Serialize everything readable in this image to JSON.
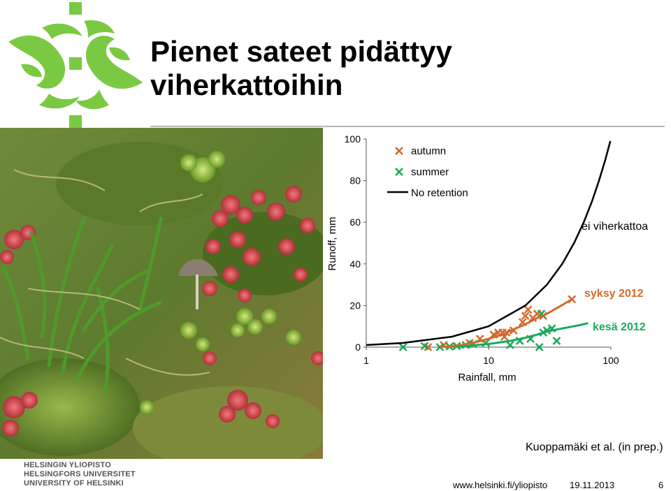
{
  "slide": {
    "title_line1": "Pienet sateet pidättyy",
    "title_line2": "viherkattoihin",
    "citation": "Kuoppamäki et al. (in prep.)"
  },
  "footer": {
    "university_fi": "HELSINGIN YLIOPISTO",
    "university_sv": "HELSINGFORS UNIVERSITET",
    "university_en": "UNIVERSITY OF HELSINKI",
    "url": "www.helsinki.fi/yliopisto",
    "date": "19.11.2013",
    "page": "6"
  },
  "colors": {
    "logo_green": "#7ac943",
    "autumn": "#d4692a",
    "summer": "#1aaa5a",
    "no_retention": "#000000"
  },
  "chart_data": {
    "type": "scatter",
    "xlabel": "Rainfall, mm",
    "ylabel": "Runoff, mm",
    "xscale": "log",
    "xlim": [
      1,
      100
    ],
    "ylim": [
      0,
      100
    ],
    "xticks": [
      "1",
      "10",
      "100"
    ],
    "yticks": [
      "0",
      "20",
      "40",
      "60",
      "80",
      "100"
    ],
    "legend_position": "top-left",
    "legend": [
      {
        "label": "autumn",
        "marker": "x",
        "color": "#d4692a"
      },
      {
        "label": "summer",
        "marker": "x",
        "color": "#1aaa5a"
      },
      {
        "label": "No retention",
        "marker": "line",
        "color": "#000000"
      }
    ],
    "annotations": [
      {
        "text": "ei viherkattoa",
        "color": "#000000"
      },
      {
        "text": "syksy 2012",
        "color": "#d4692a"
      },
      {
        "text": "kesä 2012",
        "color": "#1aaa5a"
      }
    ],
    "series": [
      {
        "name": "autumn",
        "kind": "scatter",
        "color": "#d4692a",
        "points": [
          [
            3.2,
            0
          ],
          [
            4.3,
            1
          ],
          [
            5.5,
            0.5
          ],
          [
            7,
            2
          ],
          [
            8.5,
            4
          ],
          [
            11,
            6
          ],
          [
            12,
            7
          ],
          [
            13,
            7
          ],
          [
            13.5,
            5
          ],
          [
            14,
            7
          ],
          [
            16,
            8
          ],
          [
            19,
            12
          ],
          [
            20,
            15
          ],
          [
            21,
            18
          ],
          [
            23,
            14
          ],
          [
            25,
            16
          ],
          [
            28,
            15
          ],
          [
            48,
            23
          ]
        ]
      },
      {
        "name": "summer",
        "kind": "scatter",
        "color": "#1aaa5a",
        "points": [
          [
            2,
            0
          ],
          [
            3,
            0.5
          ],
          [
            4,
            0
          ],
          [
            4.8,
            0.3
          ],
          [
            5.5,
            0.5
          ],
          [
            6.5,
            1
          ],
          [
            7.5,
            1.5
          ],
          [
            9.5,
            2
          ],
          [
            15,
            1
          ],
          [
            18,
            3
          ],
          [
            22,
            4
          ],
          [
            27,
            16
          ],
          [
            28,
            7
          ],
          [
            30,
            8
          ],
          [
            33,
            9
          ],
          [
            36,
            3
          ],
          [
            26,
            0
          ]
        ]
      },
      {
        "name": "No retention",
        "kind": "line",
        "color": "#000000",
        "points": [
          [
            1,
            1
          ],
          [
            2,
            2
          ],
          [
            5,
            5
          ],
          [
            10,
            10
          ],
          [
            20,
            20
          ],
          [
            30,
            30
          ],
          [
            40,
            40
          ],
          [
            50,
            50
          ],
          [
            60,
            60
          ],
          [
            70,
            70
          ],
          [
            80,
            80
          ],
          [
            90,
            90
          ],
          [
            99,
            99
          ]
        ]
      },
      {
        "name": "syksy 2012",
        "kind": "trend",
        "color": "#d4692a",
        "points": [
          [
            4,
            0
          ],
          [
            6,
            1
          ],
          [
            8,
            2.5
          ],
          [
            10,
            4
          ],
          [
            13,
            6
          ],
          [
            16,
            8.5
          ],
          [
            20,
            11
          ],
          [
            25,
            14
          ],
          [
            30,
            16
          ],
          [
            38,
            19.5
          ],
          [
            48,
            23
          ]
        ]
      },
      {
        "name": "kesä 2012",
        "kind": "trend",
        "color": "#1aaa5a",
        "points": [
          [
            5.5,
            0
          ],
          [
            8,
            1
          ],
          [
            10,
            1.5
          ],
          [
            15,
            3
          ],
          [
            20,
            4.5
          ],
          [
            25,
            6
          ],
          [
            30,
            7.5
          ],
          [
            40,
            9
          ],
          [
            55,
            10.5
          ],
          [
            65,
            11.5
          ]
        ]
      }
    ]
  }
}
